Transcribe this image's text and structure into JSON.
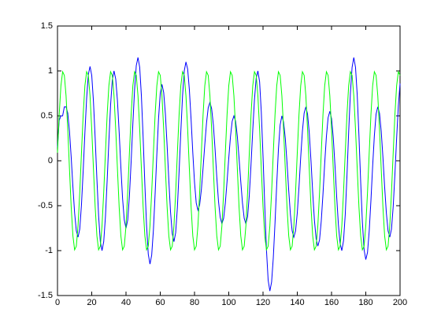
{
  "chart_data": {
    "type": "line",
    "x": [
      0,
      1,
      2,
      3,
      4,
      5,
      6,
      7,
      8,
      9,
      10,
      11,
      12,
      13,
      14,
      15,
      16,
      17,
      18,
      19,
      20,
      21,
      22,
      23,
      24,
      25,
      26,
      27,
      28,
      29,
      30,
      31,
      32,
      33,
      34,
      35,
      36,
      37,
      38,
      39,
      40,
      41,
      42,
      43,
      44,
      45,
      46,
      47,
      48,
      49,
      50,
      51,
      52,
      53,
      54,
      55,
      56,
      57,
      58,
      59,
      60,
      61,
      62,
      63,
      64,
      65,
      66,
      67,
      68,
      69,
      70,
      71,
      72,
      73,
      74,
      75,
      76,
      77,
      78,
      79,
      80,
      81,
      82,
      83,
      84,
      85,
      86,
      87,
      88,
      89,
      90,
      91,
      92,
      93,
      94,
      95,
      96,
      97,
      98,
      99,
      100,
      101,
      102,
      103,
      104,
      105,
      106,
      107,
      108,
      109,
      110,
      111,
      112,
      113,
      114,
      115,
      116,
      117,
      118,
      119,
      120,
      121,
      122,
      123,
      124,
      125,
      126,
      127,
      128,
      129,
      130,
      131,
      132,
      133,
      134,
      135,
      136,
      137,
      138,
      139,
      140,
      141,
      142,
      143,
      144,
      145,
      146,
      147,
      148,
      149,
      150,
      151,
      152,
      153,
      154,
      155,
      156,
      157,
      158,
      159,
      160,
      161,
      162,
      163,
      164,
      165,
      166,
      167,
      168,
      169,
      170,
      171,
      172,
      173,
      174,
      175,
      176,
      177,
      178,
      179,
      180,
      181,
      182,
      183,
      184,
      185,
      186,
      187,
      188,
      189,
      190,
      191,
      192,
      193,
      194,
      195,
      196,
      197,
      198,
      199,
      200
    ],
    "series": [
      {
        "color": "#0000ff",
        "values": [
          0.15,
          0.45,
          0.5,
          0.5,
          0.6,
          0.6,
          0.53,
          0.33,
          0.04,
          -0.29,
          -0.58,
          -0.78,
          -0.85,
          -0.76,
          -0.49,
          -0.11,
          0.31,
          0.69,
          0.96,
          1.05,
          0.95,
          0.66,
          0.25,
          -0.2,
          -0.61,
          -0.9,
          -1.0,
          -0.9,
          -0.62,
          -0.22,
          0.22,
          0.62,
          0.9,
          1.0,
          0.91,
          0.67,
          0.32,
          -0.07,
          -0.42,
          -0.66,
          -0.75,
          -0.66,
          -0.39,
          -0.01,
          0.41,
          0.79,
          1.06,
          1.15,
          1.04,
          0.72,
          0.26,
          -0.26,
          -0.72,
          -1.04,
          -1.15,
          -1.05,
          -0.77,
          -0.37,
          0.07,
          0.47,
          0.75,
          0.85,
          0.76,
          0.52,
          0.17,
          -0.22,
          -0.57,
          -0.81,
          -0.9,
          -0.8,
          -0.52,
          -0.12,
          0.32,
          0.72,
          1.0,
          1.1,
          1.02,
          0.79,
          0.46,
          0.09,
          -0.24,
          -0.47,
          -0.55,
          -0.49,
          -0.32,
          -0.08,
          0.18,
          0.42,
          0.59,
          0.65,
          0.58,
          0.4,
          0.13,
          -0.18,
          -0.45,
          -0.63,
          -0.7,
          -0.64,
          -0.47,
          -0.23,
          0.03,
          0.27,
          0.44,
          0.5,
          0.44,
          0.27,
          0.03,
          -0.23,
          -0.47,
          -0.64,
          -0.7,
          -0.62,
          -0.38,
          -0.04,
          0.34,
          0.68,
          0.92,
          1.0,
          0.88,
          0.54,
          0.05,
          -0.5,
          -0.99,
          -1.33,
          -1.45,
          -1.35,
          -1.08,
          -0.69,
          -0.26,
          0.13,
          0.4,
          0.5,
          0.43,
          0.25,
          -0.02,
          -0.33,
          -0.6,
          -0.78,
          -0.85,
          -0.78,
          -0.58,
          -0.29,
          0.04,
          0.33,
          0.53,
          0.6,
          0.52,
          0.31,
          0,
          -0.35,
          -0.66,
          -0.87,
          -0.95,
          -0.88,
          -0.67,
          -0.37,
          -0.03,
          0.27,
          0.48,
          0.55,
          0.47,
          0.26,
          -0.05,
          -0.4,
          -0.71,
          -0.92,
          -1.0,
          -0.89,
          -0.6,
          -0.17,
          0.32,
          0.75,
          1.04,
          1.15,
          1.04,
          0.73,
          0.28,
          -0.23,
          -0.68,
          -0.99,
          -1.1,
          -1.02,
          -0.78,
          -0.44,
          -0.06,
          0.28,
          0.52,
          0.6,
          0.53,
          0.33,
          0.04,
          -0.29,
          -0.58,
          -0.78,
          -0.85,
          -0.76,
          -0.51,
          -0.15,
          0.25,
          0.61,
          0.86
        ]
      },
      {
        "color": "#00ff00",
        "values": [
          0.09,
          0.513,
          0.835,
          0.991,
          0.951,
          0.723,
          0.351,
          -0.09,
          -0.513,
          -0.835,
          -0.991,
          -0.951,
          -0.723,
          -0.351,
          0.09,
          0.513,
          0.835,
          0.991,
          0.951,
          0.723,
          0.351,
          -0.09,
          -0.513,
          -0.835,
          -0.991,
          -0.951,
          -0.723,
          -0.351,
          0.09,
          0.513,
          0.835,
          0.991,
          0.951,
          0.723,
          0.351,
          -0.09,
          -0.513,
          -0.835,
          -0.991,
          -0.951,
          -0.723,
          -0.351,
          0.09,
          0.513,
          0.835,
          0.991,
          0.951,
          0.723,
          0.351,
          -0.09,
          -0.513,
          -0.835,
          -0.991,
          -0.951,
          -0.723,
          -0.351,
          0.09,
          0.513,
          0.835,
          0.991,
          0.951,
          0.723,
          0.351,
          -0.09,
          -0.513,
          -0.835,
          -0.991,
          -0.951,
          -0.723,
          -0.351,
          0.09,
          0.513,
          0.835,
          0.991,
          0.951,
          0.723,
          0.351,
          -0.09,
          -0.513,
          -0.835,
          -0.991,
          -0.951,
          -0.723,
          -0.351,
          0.09,
          0.513,
          0.835,
          0.991,
          0.951,
          0.723,
          0.351,
          -0.09,
          -0.513,
          -0.835,
          -0.991,
          -0.951,
          -0.723,
          -0.351,
          0.09,
          0.513,
          0.835,
          0.991,
          0.951,
          0.723,
          0.351,
          -0.09,
          -0.513,
          -0.835,
          -0.991,
          -0.951,
          -0.723,
          -0.351,
          0.09,
          0.513,
          0.835,
          0.991,
          0.951,
          0.723,
          0.351,
          -0.09,
          -0.513,
          -0.835,
          -0.991,
          -0.951,
          -0.723,
          -0.351,
          0.09,
          0.513,
          0.835,
          0.991,
          0.951,
          0.723,
          0.351,
          -0.09,
          -0.513,
          -0.835,
          -0.991,
          -0.951,
          -0.723,
          -0.351,
          0.09,
          0.513,
          0.835,
          0.991,
          0.951,
          0.723,
          0.351,
          -0.09,
          -0.513,
          -0.835,
          -0.991,
          -0.951,
          -0.723,
          -0.351,
          0.09,
          0.513,
          0.835,
          0.991,
          0.951,
          0.723,
          0.351,
          -0.09,
          -0.513,
          -0.835,
          -0.991,
          -0.951,
          -0.723,
          -0.351,
          0.09,
          0.513,
          0.835,
          0.991,
          0.951,
          0.723,
          0.351,
          -0.09,
          -0.513,
          -0.835,
          -0.991,
          -0.951,
          -0.723,
          -0.351,
          0.09,
          0.513,
          0.835,
          0.991,
          0.951,
          0.723,
          0.351,
          -0.09,
          -0.513,
          -0.835,
          -0.991,
          -0.951,
          -0.723,
          -0.351,
          0.09,
          0.513,
          0.835,
          0.991,
          0.951
        ]
      }
    ],
    "xlim": [
      0,
      200
    ],
    "xticks": [
      0,
      20,
      40,
      60,
      80,
      100,
      120,
      140,
      160,
      180,
      200
    ],
    "ylim": [
      -1.5,
      1.5
    ],
    "yticks": [
      -1.5,
      -1,
      -0.5,
      0,
      0.5,
      1,
      1.5
    ]
  }
}
